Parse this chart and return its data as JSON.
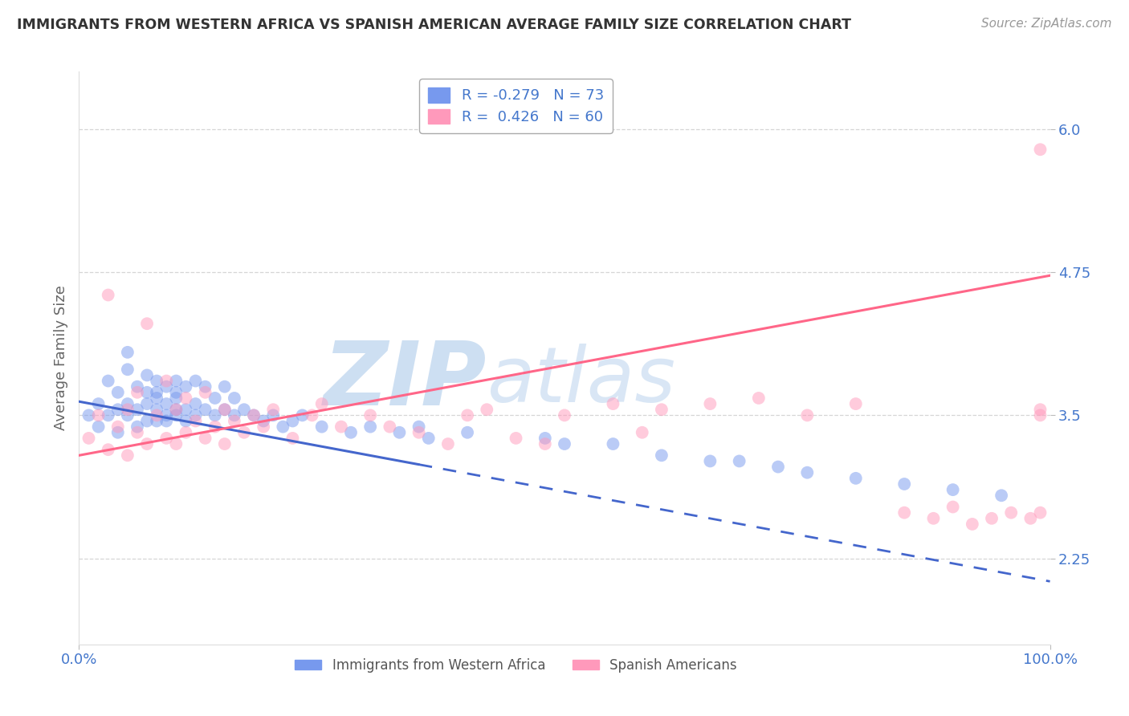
{
  "title": "IMMIGRANTS FROM WESTERN AFRICA VS SPANISH AMERICAN AVERAGE FAMILY SIZE CORRELATION CHART",
  "source": "Source: ZipAtlas.com",
  "ylabel": "Average Family Size",
  "yticks": [
    2.25,
    3.5,
    4.75,
    6.0
  ],
  "xmin": 0.0,
  "xmax": 100.0,
  "ymin": 1.5,
  "ymax": 6.5,
  "blue_R": -0.279,
  "blue_N": 73,
  "pink_R": 0.426,
  "pink_N": 60,
  "blue_color": "#7799ee",
  "pink_color": "#ff99bb",
  "blue_line_color": "#4466cc",
  "pink_line_color": "#ff6688",
  "axis_tick_color": "#4477cc",
  "title_color": "#333333",
  "source_color": "#999999",
  "grid_color": "#cccccc",
  "background_color": "#ffffff",
  "watermark_color": "#c5daf0",
  "blue_line_y0": 3.62,
  "blue_line_y100": 2.05,
  "pink_line_y0": 3.15,
  "pink_line_y100": 4.72,
  "blue_solid_end_x": 35,
  "blue_scatter_x": [
    1,
    2,
    2,
    3,
    3,
    4,
    4,
    4,
    5,
    5,
    5,
    5,
    6,
    6,
    6,
    7,
    7,
    7,
    7,
    8,
    8,
    8,
    8,
    8,
    9,
    9,
    9,
    9,
    10,
    10,
    10,
    10,
    10,
    11,
    11,
    11,
    12,
    12,
    12,
    13,
    13,
    14,
    14,
    15,
    15,
    16,
    16,
    17,
    18,
    19,
    20,
    21,
    22,
    23,
    25,
    28,
    30,
    33,
    35,
    36,
    40,
    48,
    50,
    55,
    60,
    65,
    68,
    72,
    75,
    80,
    85,
    90,
    95
  ],
  "blue_scatter_y": [
    3.5,
    3.4,
    3.6,
    3.5,
    3.8,
    3.55,
    3.7,
    3.35,
    3.5,
    3.9,
    3.6,
    4.05,
    3.55,
    3.75,
    3.4,
    3.6,
    3.85,
    3.45,
    3.7,
    3.55,
    3.8,
    3.65,
    3.45,
    3.7,
    3.5,
    3.75,
    3.6,
    3.45,
    3.55,
    3.8,
    3.65,
    3.5,
    3.7,
    3.55,
    3.75,
    3.45,
    3.6,
    3.8,
    3.5,
    3.55,
    3.75,
    3.5,
    3.65,
    3.55,
    3.75,
    3.5,
    3.65,
    3.55,
    3.5,
    3.45,
    3.5,
    3.4,
    3.45,
    3.5,
    3.4,
    3.35,
    3.4,
    3.35,
    3.4,
    3.3,
    3.35,
    3.3,
    3.25,
    3.25,
    3.15,
    3.1,
    3.1,
    3.05,
    3.0,
    2.95,
    2.9,
    2.85,
    2.8
  ],
  "pink_scatter_x": [
    1,
    2,
    3,
    3,
    4,
    5,
    5,
    6,
    6,
    7,
    7,
    8,
    9,
    9,
    10,
    10,
    11,
    11,
    12,
    13,
    13,
    14,
    15,
    15,
    16,
    17,
    18,
    19,
    20,
    22,
    24,
    25,
    27,
    30,
    32,
    35,
    38,
    40,
    42,
    45,
    48,
    50,
    55,
    58,
    60,
    65,
    70,
    75,
    80,
    85,
    88,
    90,
    92,
    94,
    96,
    98,
    99,
    99,
    99,
    99
  ],
  "pink_scatter_y": [
    3.3,
    3.5,
    3.2,
    4.55,
    3.4,
    3.55,
    3.15,
    3.35,
    3.7,
    3.25,
    4.3,
    3.5,
    3.3,
    3.8,
    3.25,
    3.55,
    3.35,
    3.65,
    3.45,
    3.3,
    3.7,
    3.4,
    3.25,
    3.55,
    3.45,
    3.35,
    3.5,
    3.4,
    3.55,
    3.3,
    3.5,
    3.6,
    3.4,
    3.5,
    3.4,
    3.35,
    3.25,
    3.5,
    3.55,
    3.3,
    3.25,
    3.5,
    3.6,
    3.35,
    3.55,
    3.6,
    3.65,
    3.5,
    3.6,
    2.65,
    2.6,
    2.7,
    2.55,
    2.6,
    2.65,
    2.6,
    5.82,
    3.5,
    2.65,
    3.55
  ]
}
